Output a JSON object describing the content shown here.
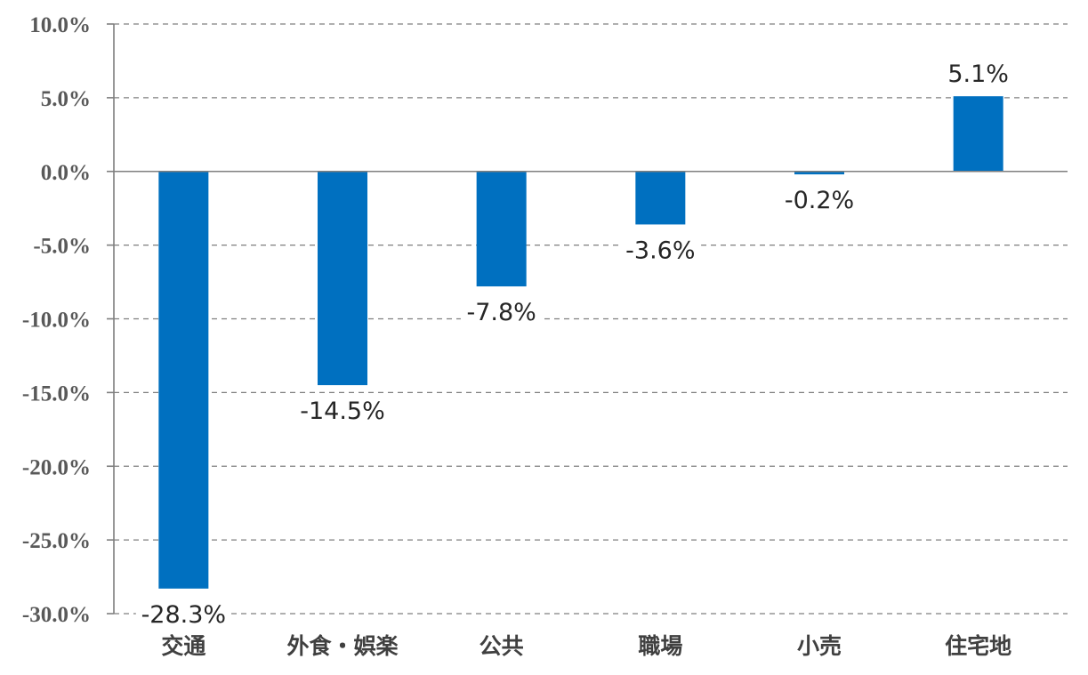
{
  "chart_data": {
    "type": "bar",
    "categories": [
      "交通",
      "外食・娯楽",
      "公共",
      "職場",
      "小売",
      "住宅地"
    ],
    "values": [
      -28.3,
      -14.5,
      -7.8,
      -3.6,
      -0.2,
      5.1
    ],
    "data_labels": [
      "-28.3%",
      "-14.5%",
      "-7.8%",
      "-3.6%",
      "-0.2%",
      "5.1%"
    ],
    "y_ticks": [
      10,
      5,
      0,
      -5,
      -10,
      -15,
      -20,
      -25,
      -30
    ],
    "y_tick_labels": [
      "10.0%",
      "5.0%",
      "0.0%",
      "-5.0%",
      "-10.0%",
      "-15.0%",
      "-20.0%",
      "-25.0%",
      "-30.0%"
    ],
    "ylim": [
      -30,
      10
    ],
    "grid": true,
    "legend": "none",
    "bar_color": "#0070C0",
    "title": "",
    "xlabel": "",
    "ylabel": ""
  }
}
